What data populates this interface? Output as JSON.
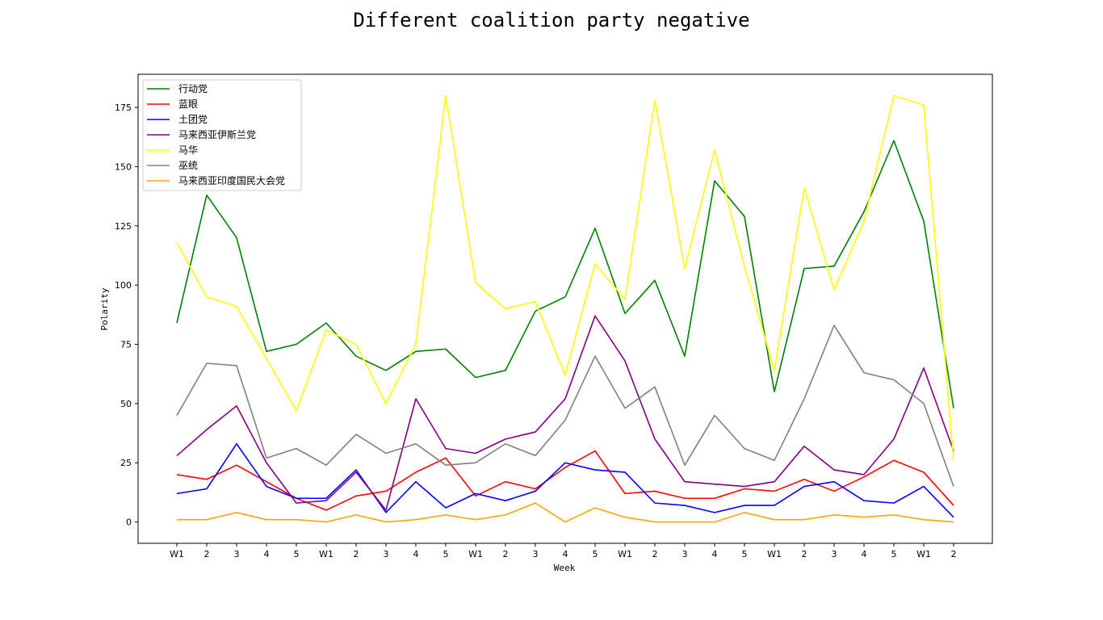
{
  "chart_data": {
    "type": "line",
    "title": "Different coalition party negative",
    "xlabel": "Week",
    "ylabel": "Polarity",
    "ylim": [
      -9,
      189
    ],
    "yticks": [
      0,
      25,
      50,
      75,
      100,
      125,
      150,
      175
    ],
    "categories": [
      "W1",
      "2",
      "3",
      "4",
      "5",
      "W1",
      "2",
      "3",
      "4",
      "5",
      "W1",
      "2",
      "3",
      "4",
      "5",
      "W1",
      "2",
      "3",
      "4",
      "5",
      "W1",
      "2",
      "3",
      "4",
      "5",
      "W1",
      "2"
    ],
    "grid": false,
    "legend_position": "top-left",
    "series": [
      {
        "name": "行动党",
        "color": "#008000",
        "values": [
          84,
          138,
          120,
          72,
          75,
          84,
          70,
          64,
          72,
          73,
          61,
          64,
          89,
          95,
          124,
          88,
          102,
          70,
          144,
          129,
          55,
          107,
          108,
          131,
          161,
          127,
          48
        ]
      },
      {
        "name": "蓝眼",
        "color": "#ff0000",
        "values": [
          20,
          18,
          24,
          17,
          10,
          5,
          11,
          13,
          21,
          27,
          11,
          17,
          14,
          23,
          30,
          12,
          13,
          10,
          10,
          14,
          13,
          18,
          13,
          19,
          26,
          21,
          7
        ]
      },
      {
        "name": "土团党",
        "color": "#0000ff",
        "values": [
          12,
          14,
          33,
          15,
          10,
          10,
          22,
          4,
          17,
          6,
          12,
          9,
          13,
          25,
          22,
          21,
          8,
          7,
          4,
          7,
          7,
          15,
          17,
          9,
          8,
          15,
          2
        ]
      },
      {
        "name": "马来西亚伊斯兰党",
        "color": "#800080",
        "values": [
          28,
          39,
          49,
          25,
          8,
          9,
          21,
          5,
          52,
          31,
          29,
          35,
          38,
          52,
          87,
          68,
          35,
          17,
          16,
          15,
          17,
          32,
          22,
          20,
          35,
          65,
          30
        ]
      },
      {
        "name": "马华",
        "color": "#ffff00",
        "values": [
          118,
          95,
          91,
          69,
          47,
          81,
          75,
          50,
          75,
          180,
          101,
          90,
          93,
          62,
          109,
          94,
          178,
          107,
          157,
          108,
          64,
          141,
          98,
          127,
          180,
          176,
          26
        ]
      },
      {
        "name": "巫统",
        "color": "#808080",
        "values": [
          45,
          67,
          66,
          27,
          31,
          24,
          37,
          29,
          33,
          24,
          25,
          33,
          28,
          43,
          70,
          48,
          57,
          24,
          45,
          31,
          26,
          52,
          83,
          63,
          60,
          50,
          15
        ]
      },
      {
        "name": "马来西亚印度国民大会党",
        "color": "#ffa500",
        "values": [
          1,
          1,
          4,
          1,
          1,
          0,
          3,
          0,
          1,
          3,
          1,
          3,
          8,
          0,
          6,
          2,
          0,
          0,
          0,
          4,
          1,
          1,
          3,
          2,
          3,
          1,
          0
        ]
      }
    ]
  }
}
